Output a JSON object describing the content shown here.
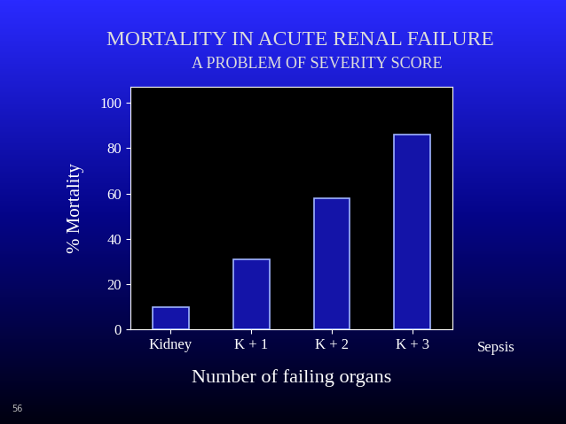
{
  "chart_data": {
    "type": "bar",
    "title": "MORTALITY IN ACUTE RENAL FAILURE",
    "subtitle": "A PROBLEM OF SEVERITY SCORE",
    "x_label": "Number of failing organs",
    "y_label": "% Mortality",
    "categories": [
      "Kidney",
      "K + 1",
      "K + 2",
      "K + 3"
    ],
    "values": [
      10,
      31,
      58,
      86
    ],
    "color": "#1414a8",
    "ylim": [
      0,
      107
    ],
    "yticks": [
      0,
      20,
      40,
      60,
      80,
      100
    ],
    "grid": false,
    "annotation": "Sepsis",
    "footer": "56"
  }
}
